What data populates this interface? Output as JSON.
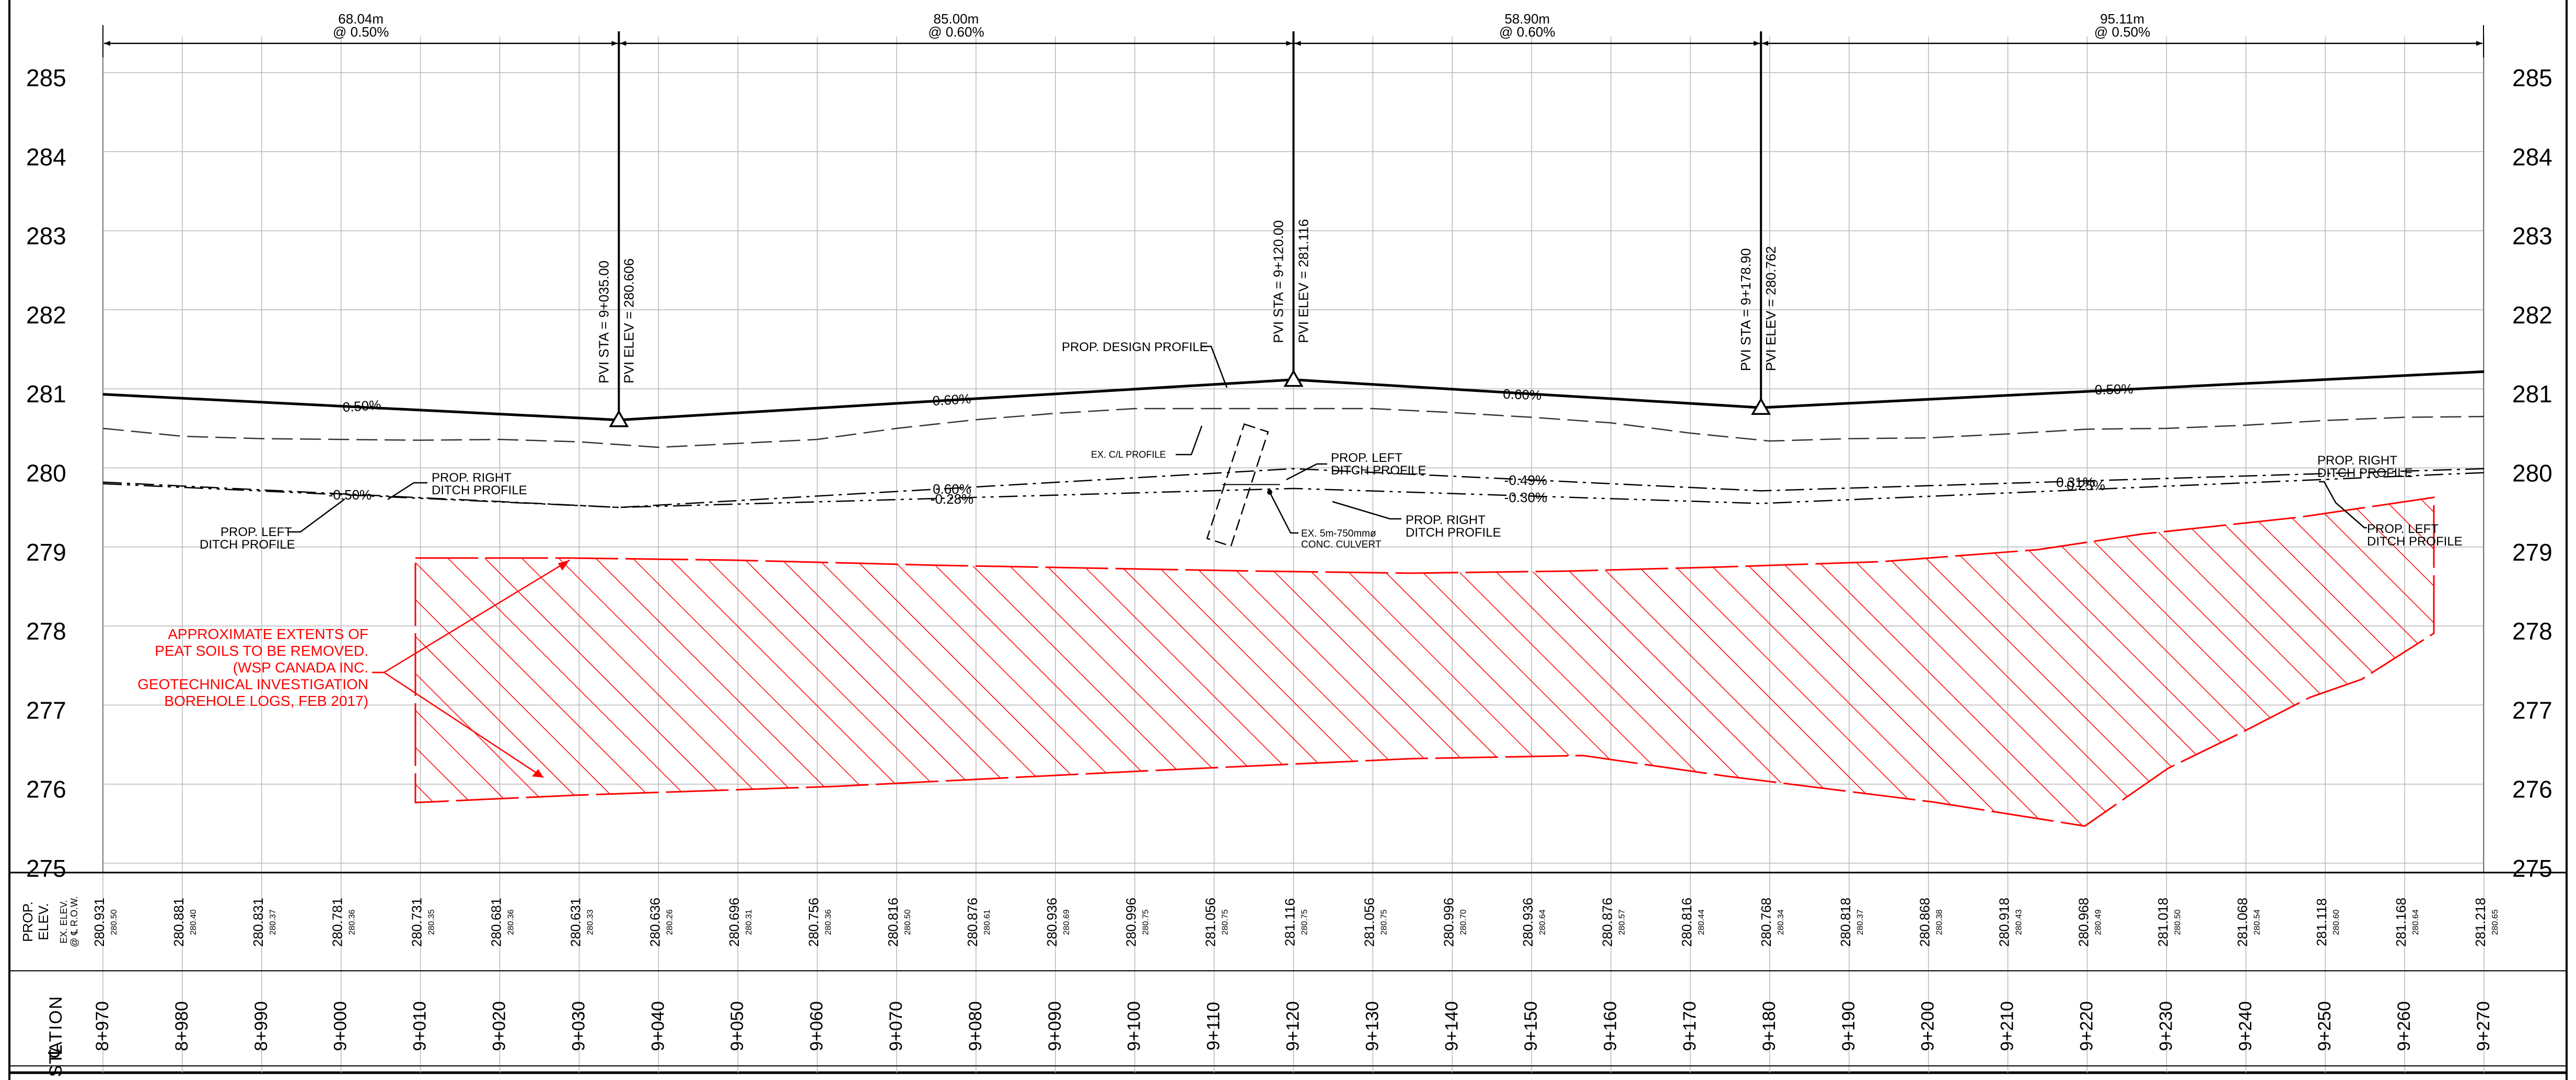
{
  "elevation_labels": [
    "285",
    "284",
    "283",
    "282",
    "281",
    "280",
    "279",
    "278",
    "277",
    "276",
    "275"
  ],
  "segments": [
    {
      "length": "68.04m",
      "grade": "@ 0.50%"
    },
    {
      "length": "85.00m",
      "grade": "@ 0.60%"
    },
    {
      "length": "58.90m",
      "grade": "@ 0.60%"
    },
    {
      "length": "95.11m",
      "grade": "@ 0.50%"
    }
  ],
  "pvis": [
    {
      "sta": "PVI STA = 9+035.00",
      "elev": "PVI ELEV = 280.606"
    },
    {
      "sta": "PVI STA = 9+120.00",
      "elev": "PVI ELEV = 281.116"
    },
    {
      "sta": "PVI STA = 9+178.90",
      "elev": "PVI ELEV = 280.762"
    }
  ],
  "design_grade_labels": [
    "0.50%",
    "0.60%",
    "0.60%",
    "0.50%"
  ],
  "ditch_grade_labels": [
    "-0.50%",
    "0.60%",
    "-0.28%",
    "-0.49%",
    "-0.30%",
    "0.31%",
    "0.25%"
  ],
  "callouts": {
    "design_profile": "PROP. DESIGN PROFILE",
    "ex_cl_profile": "EX. C/L PROFILE",
    "right_ditch_1": [
      "PROP. RIGHT",
      "DITCH PROFILE"
    ],
    "left_ditch_1": [
      "PROP. LEFT",
      "DITCH PROFILE"
    ],
    "left_ditch_2": [
      "PROP. LEFT",
      "DITCH PROFILE"
    ],
    "right_ditch_2": [
      "PROP. RIGHT",
      "DITCH PROFILE"
    ],
    "right_ditch_3": [
      "PROP. RIGHT",
      "DITCH PROFILE"
    ],
    "left_ditch_3": [
      "PROP. LEFT",
      "DITCH PROFILE"
    ],
    "culvert": [
      "EX. 5m-750mmø",
      "CONC. CULVERT"
    ],
    "peat_note": [
      "APPROXIMATE EXTENTS OF",
      "PEAT SOILS TO BE REMOVED.",
      "(WSP CANADA INC.",
      "GEOTECHNICAL INVESTIGATION",
      "BOREHOLE LOGS, FEB 2017)"
    ]
  },
  "table": {
    "elev_header": [
      "PROP.",
      "ELEV."
    ],
    "ex_header": [
      "EX. ELEV.",
      "@ ℄ R.O.W."
    ],
    "station_header": "STATION",
    "cl_symbol": "℄",
    "prop_elev": [
      "280.931",
      "280.881",
      "280.831",
      "280.781",
      "280.731",
      "280.681",
      "280.631",
      "280.636",
      "280.696",
      "280.756",
      "280.816",
      "280.876",
      "280.936",
      "280.996",
      "281.056",
      "281.116",
      "281.056",
      "280.996",
      "280.936",
      "280.876",
      "280.816",
      "280.768",
      "280.818",
      "280.868",
      "280.918",
      "280.968",
      "281.018",
      "281.068",
      "281.118",
      "281.168",
      "281.218"
    ],
    "ex_elev": [
      "280.50",
      "280.40",
      "280.37",
      "280.36",
      "280.35",
      "280.36",
      "280.33",
      "280.26",
      "280.31",
      "280.36",
      "280.50",
      "280.61",
      "280.69",
      "280.75",
      "280.75",
      "280.75",
      "280.75",
      "280.70",
      "280.64",
      "280.57",
      "280.44",
      "280.34",
      "280.37",
      "280.38",
      "280.43",
      "280.49",
      "280.50",
      "280.54",
      "280.60",
      "280.64",
      "280.65"
    ],
    "stations": [
      "8+970",
      "8+980",
      "8+990",
      "9+000",
      "9+010",
      "9+020",
      "9+030",
      "9+040",
      "9+050",
      "9+060",
      "9+070",
      "9+080",
      "9+090",
      "9+100",
      "9+110",
      "9+120",
      "9+130",
      "9+140",
      "9+150",
      "9+160",
      "9+170",
      "9+180",
      "9+190",
      "9+200",
      "9+210",
      "9+220",
      "9+230",
      "9+240",
      "9+250",
      "9+260",
      "9+270"
    ]
  },
  "colors": {
    "linework": "#000000",
    "grid": "#b8b8b8",
    "hatch": "#ff0000"
  }
}
